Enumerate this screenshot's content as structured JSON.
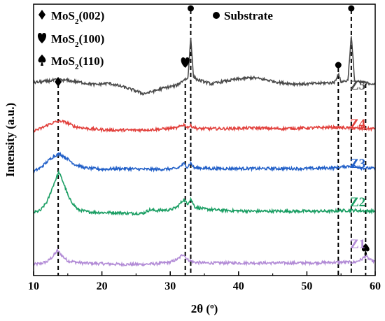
{
  "chart_data": {
    "type": "line",
    "title": "",
    "xlabel_main": "2θ (",
    "xlabel_sup": "o",
    "xlabel_end": ")",
    "ylabel": "Intensity (a.u.)",
    "xlim": [
      10,
      60
    ],
    "xticks": [
      "10",
      "20",
      "30",
      "40",
      "50",
      "60"
    ],
    "y_ticks_shown": false,
    "grid": false,
    "legend_position": "top-left",
    "legend": [
      {
        "marker": "diamond",
        "base": "MoS",
        "sub": "2",
        "tail": "(002)"
      },
      {
        "marker": "heart",
        "base": "MoS",
        "sub": "2",
        "tail": "(100)"
      },
      {
        "marker": "spade",
        "base": "MoS",
        "sub": "2",
        "tail": "(110)"
      },
      {
        "marker": "circle",
        "base": "Substrate",
        "sub": "",
        "tail": ""
      }
    ],
    "reference_peaks": [
      {
        "position": 13.6,
        "marker": "diamond",
        "phase": "MoS2(002)"
      },
      {
        "position": 32.2,
        "marker": "heart",
        "phase": "MoS2(100)"
      },
      {
        "position": 33.0,
        "marker": "circle",
        "phase": "Substrate"
      },
      {
        "position": 54.6,
        "marker": "circle",
        "phase": "Substrate"
      },
      {
        "position": 56.5,
        "marker": "circle",
        "phase": "Substrate"
      },
      {
        "position": 58.6,
        "marker": "spade",
        "phase": "MoS2(110)"
      }
    ],
    "series": [
      {
        "name": "Z1",
        "color": "#b28bd6",
        "offset": 0,
        "points": [
          [
            10,
            2
          ],
          [
            11,
            3
          ],
          [
            12,
            6
          ],
          [
            12.8,
            13
          ],
          [
            13.5,
            22
          ],
          [
            14.2,
            14
          ],
          [
            15,
            7
          ],
          [
            17,
            4
          ],
          [
            20,
            3
          ],
          [
            23,
            2
          ],
          [
            26,
            2
          ],
          [
            28,
            3
          ],
          [
            30,
            5
          ],
          [
            31.2,
            10
          ],
          [
            31.9,
            17
          ],
          [
            32.5,
            9
          ],
          [
            33.5,
            5
          ],
          [
            35,
            4
          ],
          [
            40,
            4
          ],
          [
            45,
            4
          ],
          [
            50,
            4
          ],
          [
            55,
            5
          ],
          [
            57,
            5
          ],
          [
            58,
            9
          ],
          [
            58.6,
            14
          ],
          [
            59.3,
            8
          ],
          [
            60,
            6
          ]
        ]
      },
      {
        "name": "Z2",
        "color": "#1a9e63",
        "offset": 70,
        "points": [
          [
            10,
            6
          ],
          [
            11,
            9
          ],
          [
            12,
            22
          ],
          [
            13,
            48
          ],
          [
            13.7,
            64
          ],
          [
            14.4,
            48
          ],
          [
            15.2,
            26
          ],
          [
            16.5,
            10
          ],
          [
            18,
            7
          ],
          [
            20,
            6
          ],
          [
            22,
            6
          ],
          [
            24,
            5
          ],
          [
            26,
            5
          ],
          [
            27,
            10
          ],
          [
            28,
            9
          ],
          [
            30,
            10
          ],
          [
            31,
            14
          ],
          [
            32,
            25
          ],
          [
            32.5,
            18
          ],
          [
            33,
            26
          ],
          [
            33.6,
            14
          ],
          [
            35,
            11
          ],
          [
            38,
            9
          ],
          [
            42,
            8
          ],
          [
            46,
            8
          ],
          [
            50,
            8
          ],
          [
            54,
            8
          ],
          [
            55,
            9
          ],
          [
            57,
            9
          ],
          [
            60,
            8
          ]
        ]
      },
      {
        "name": "Z3",
        "color": "#2260c8",
        "offset": 127,
        "points": [
          [
            10,
            8
          ],
          [
            11,
            13
          ],
          [
            12,
            22
          ],
          [
            13,
            30
          ],
          [
            13.8,
            33
          ],
          [
            14.8,
            27
          ],
          [
            16,
            18
          ],
          [
            17.5,
            13
          ],
          [
            20,
            11
          ],
          [
            23,
            12
          ],
          [
            26,
            11
          ],
          [
            29,
            11
          ],
          [
            31,
            12
          ],
          [
            32,
            19
          ],
          [
            32.5,
            14
          ],
          [
            33,
            20
          ],
          [
            33.5,
            13
          ],
          [
            36,
            12
          ],
          [
            40,
            12
          ],
          [
            45,
            12
          ],
          [
            50,
            12
          ],
          [
            54,
            13
          ],
          [
            55,
            14
          ],
          [
            56.5,
            16
          ],
          [
            58,
            13
          ],
          [
            60,
            12
          ]
        ]
      },
      {
        "name": "Z4",
        "color": "#e2403c",
        "offset": 183,
        "points": [
          [
            10,
            10
          ],
          [
            11,
            13
          ],
          [
            12,
            18
          ],
          [
            13,
            22
          ],
          [
            14,
            24
          ],
          [
            15,
            21
          ],
          [
            16,
            16
          ],
          [
            18,
            13
          ],
          [
            21,
            11
          ],
          [
            25,
            11
          ],
          [
            28,
            12
          ],
          [
            31,
            14
          ],
          [
            32,
            19
          ],
          [
            32.5,
            15
          ],
          [
            33,
            17
          ],
          [
            34,
            13
          ],
          [
            38,
            13
          ],
          [
            42,
            14
          ],
          [
            46,
            13
          ],
          [
            50,
            14
          ],
          [
            54,
            15
          ],
          [
            56,
            14
          ],
          [
            58,
            13
          ],
          [
            60,
            13
          ]
        ]
      },
      {
        "name": "Z5",
        "color": "#4a4a4a",
        "offset": 238,
        "points": [
          [
            10,
            24
          ],
          [
            12,
            26
          ],
          [
            13.5,
            28
          ],
          [
            15,
            27
          ],
          [
            17,
            24
          ],
          [
            19,
            21
          ],
          [
            21,
            23
          ],
          [
            23,
            18
          ],
          [
            25,
            12
          ],
          [
            26,
            8
          ],
          [
            27,
            10
          ],
          [
            29,
            16
          ],
          [
            31,
            20
          ],
          [
            32,
            28
          ],
          [
            32.6,
            30
          ],
          [
            33,
            90
          ],
          [
            33.4,
            32
          ],
          [
            34,
            28
          ],
          [
            36,
            22
          ],
          [
            38,
            26
          ],
          [
            40,
            29
          ],
          [
            42,
            31
          ],
          [
            44,
            28
          ],
          [
            46,
            24
          ],
          [
            48,
            22
          ],
          [
            50,
            22
          ],
          [
            52,
            23
          ],
          [
            54,
            24
          ],
          [
            54.6,
            36
          ],
          [
            55,
            25
          ],
          [
            56,
            27
          ],
          [
            56.5,
            90
          ],
          [
            57,
            26
          ],
          [
            58,
            24
          ],
          [
            60,
            22
          ]
        ]
      }
    ]
  }
}
